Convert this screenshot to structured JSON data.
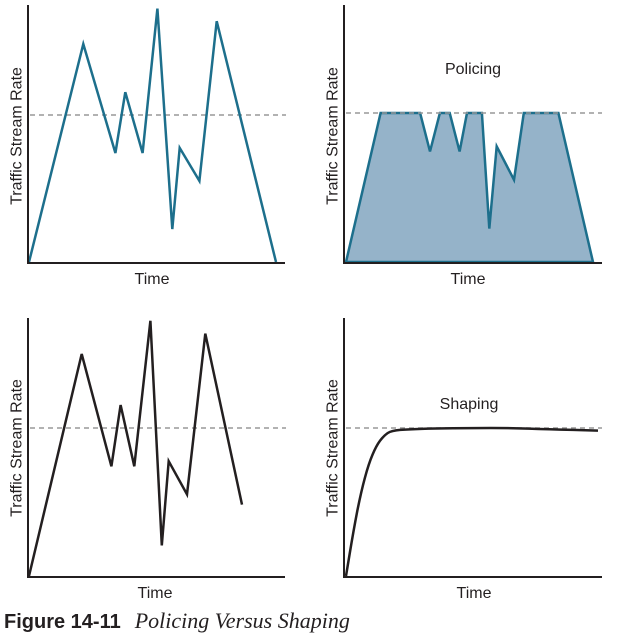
{
  "caption": {
    "number": "Figure 14-11",
    "text": "Policing Versus Shaping"
  },
  "colors": {
    "teal": "#1d6f8c",
    "fill": "#95b3c9",
    "black": "#231f20",
    "dash": "#999999"
  },
  "chart_data": [
    {
      "type": "line",
      "title": "",
      "xlabel": "Time",
      "ylabel": "Traffic Stream Rate",
      "xlim": [
        0,
        100
      ],
      "ylim": [
        0,
        100
      ],
      "threshold": 58,
      "color": "teal",
      "fill": false,
      "points": [
        [
          0,
          0
        ],
        [
          22,
          86
        ],
        [
          35,
          43
        ],
        [
          39,
          67
        ],
        [
          46,
          43
        ],
        [
          52,
          100
        ],
        [
          58,
          13
        ],
        [
          61,
          45
        ],
        [
          69,
          32
        ],
        [
          76,
          95
        ],
        [
          100,
          0
        ]
      ]
    },
    {
      "type": "area",
      "title": "Policing",
      "xlabel": "Time",
      "ylabel": "Traffic Stream Rate",
      "xlim": [
        0,
        100
      ],
      "ylim": [
        0,
        100
      ],
      "threshold": 58,
      "color": "teal",
      "fill": true,
      "points": [
        [
          0,
          0
        ],
        [
          14,
          58
        ],
        [
          30,
          58
        ],
        [
          34,
          43
        ],
        [
          38,
          58
        ],
        [
          42,
          58
        ],
        [
          46,
          43
        ],
        [
          49,
          58
        ],
        [
          55,
          58
        ],
        [
          58,
          13
        ],
        [
          61,
          45
        ],
        [
          68,
          32
        ],
        [
          72,
          58
        ],
        [
          86,
          58
        ],
        [
          100,
          0
        ]
      ]
    },
    {
      "type": "line",
      "title": "",
      "xlabel": "Time",
      "ylabel": "Traffic Stream Rate",
      "xlim": [
        0,
        100
      ],
      "ylim": [
        0,
        100
      ],
      "threshold": 58,
      "color": "black",
      "fill": false,
      "points": [
        [
          0,
          0
        ],
        [
          23,
          87
        ],
        [
          36,
          43
        ],
        [
          40,
          67
        ],
        [
          46,
          43
        ],
        [
          53,
          100
        ],
        [
          58,
          12
        ],
        [
          61,
          45
        ],
        [
          69,
          32
        ],
        [
          77,
          95
        ],
        [
          93,
          28
        ]
      ]
    },
    {
      "type": "line",
      "title": "Shaping",
      "xlabel": "Time",
      "ylabel": "Traffic Stream Rate",
      "xlim": [
        0,
        100
      ],
      "ylim": [
        0,
        100
      ],
      "threshold": 58,
      "color": "black",
      "fill": false,
      "curve": "shaping",
      "points": [
        [
          0,
          0
        ],
        [
          3,
          18
        ],
        [
          6,
          33
        ],
        [
          9,
          44
        ],
        [
          12,
          51
        ],
        [
          15,
          55
        ],
        [
          18,
          57
        ],
        [
          25,
          57.5
        ],
        [
          35,
          57.8
        ],
        [
          50,
          58
        ],
        [
          65,
          58
        ],
        [
          80,
          57.5
        ],
        [
          100,
          57
        ]
      ]
    }
  ]
}
